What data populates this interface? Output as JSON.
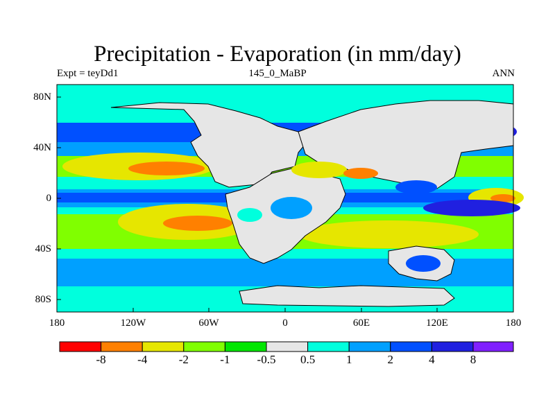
{
  "title": "Precipitation - Evaporation (in mm/day)",
  "subtitle_left": "Expt = teyDd1",
  "subtitle_center": "145_0_MaBP",
  "subtitle_right": "ANN",
  "lat_labels": [
    "80N",
    "40N",
    "0",
    "40S",
    "80S"
  ],
  "lon_labels": [
    "180",
    "120W",
    "60W",
    "0",
    "60E",
    "120E",
    "180"
  ],
  "colorbar": {
    "labels": [
      "-8",
      "-4",
      "-2",
      "-1",
      "-0.5",
      "0.5",
      "1",
      "2",
      "4",
      "8"
    ],
    "colors": [
      "#ff0000",
      "#ff8000",
      "#e6e600",
      "#80ff00",
      "#00e600",
      "#e6e6e6",
      "#00ffdd",
      "#00a0ff",
      "#0050ff",
      "#2020e0",
      "#8020ff"
    ]
  }
}
